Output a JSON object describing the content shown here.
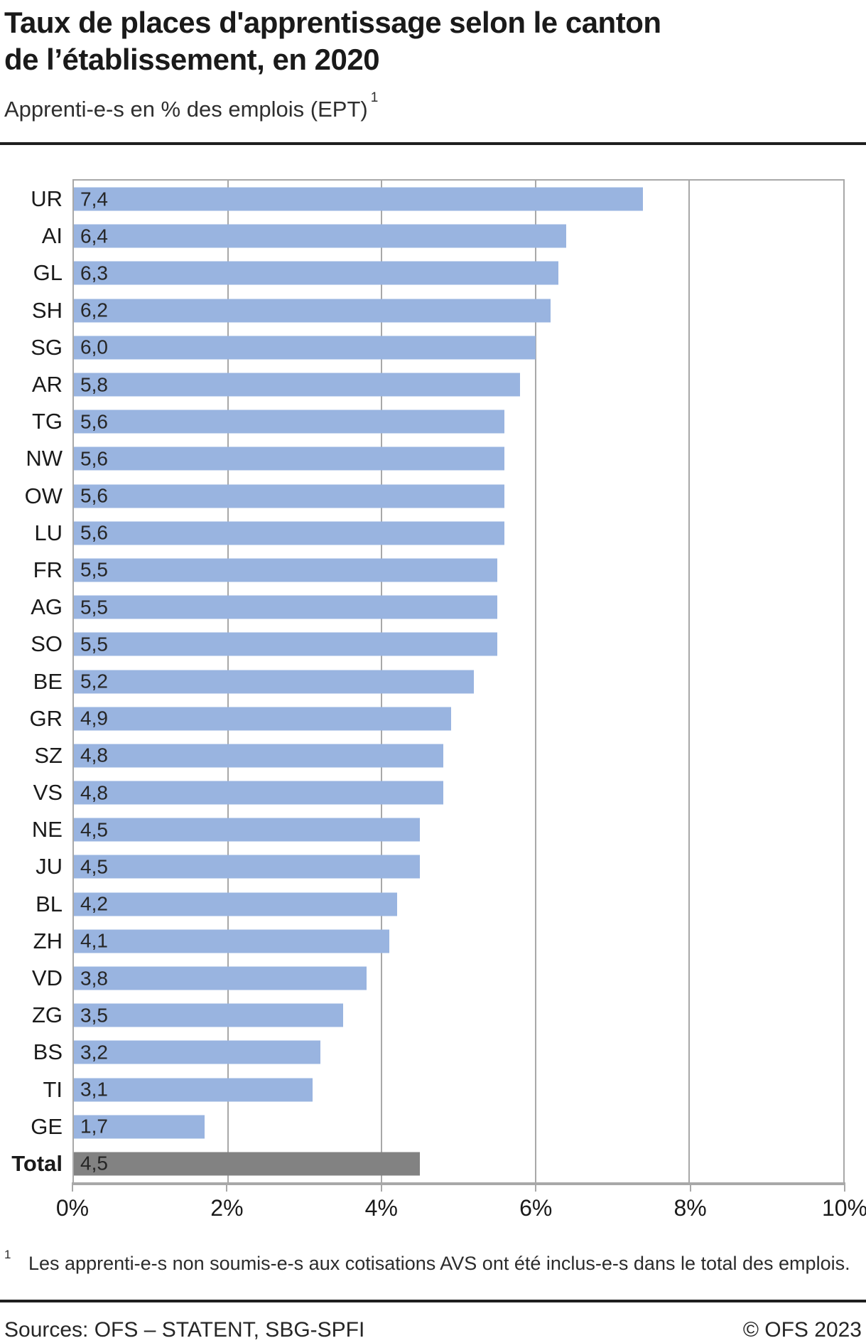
{
  "header": {
    "title_lines": [
      "Taux de places d'apprentissage selon le canton",
      "de l’établissement, en 2020"
    ],
    "subtitle": "Apprenti-e-s en % des emplois (EPT)",
    "subtitle_footnote_marker": "1"
  },
  "chart_data": {
    "type": "bar",
    "orientation": "horizontal",
    "title": "Taux de places d'apprentissage selon le canton de l’établissement, en 2020",
    "subtitle": "Apprenti-e-s en % des emplois (EPT)",
    "categories": [
      "UR",
      "AI",
      "GL",
      "SH",
      "SG",
      "AR",
      "TG",
      "NW",
      "OW",
      "LU",
      "FR",
      "AG",
      "SO",
      "BE",
      "GR",
      "SZ",
      "VS",
      "NE",
      "JU",
      "BL",
      "ZH",
      "VD",
      "ZG",
      "BS",
      "TI",
      "GE",
      "Total"
    ],
    "values": [
      7.4,
      6.4,
      6.3,
      6.2,
      6.0,
      5.8,
      5.6,
      5.6,
      5.6,
      5.6,
      5.5,
      5.5,
      5.5,
      5.2,
      4.9,
      4.8,
      4.8,
      4.5,
      4.5,
      4.2,
      4.1,
      3.8,
      3.5,
      3.2,
      3.1,
      1.7,
      4.5
    ],
    "value_labels": [
      "7,4",
      "6,4",
      "6,3",
      "6,2",
      "6,0",
      "5,8",
      "5,6",
      "5,6",
      "5,6",
      "5,6",
      "5,5",
      "5,5",
      "5,5",
      "5,2",
      "4,9",
      "4,8",
      "4,8",
      "4,5",
      "4,5",
      "4,2",
      "4,1",
      "3,8",
      "3,5",
      "3,2",
      "3,1",
      "1,7",
      "4,5"
    ],
    "highlight_category": "Total",
    "xlabel": "",
    "ylabel": "",
    "xlim": [
      0,
      10
    ],
    "x_tick_values": [
      0,
      2,
      4,
      6,
      8,
      10
    ],
    "x_tick_labels": [
      "0%",
      "2%",
      "4%",
      "6%",
      "8%",
      "10%"
    ],
    "grid": true,
    "legend": false,
    "bar_color": "#99b4e0",
    "highlight_bar_color": "#828282",
    "gridline_color": "#a8a8a8"
  },
  "footnote": {
    "marker": "1",
    "text": "Les apprenti-e-s non soumis-e-s aux cotisations AVS ont été inclus-e-s dans le total des emplois."
  },
  "footer": {
    "sources": "Sources: OFS – STATENT, SBG-SPFI",
    "copyright": "© OFS 2023"
  }
}
